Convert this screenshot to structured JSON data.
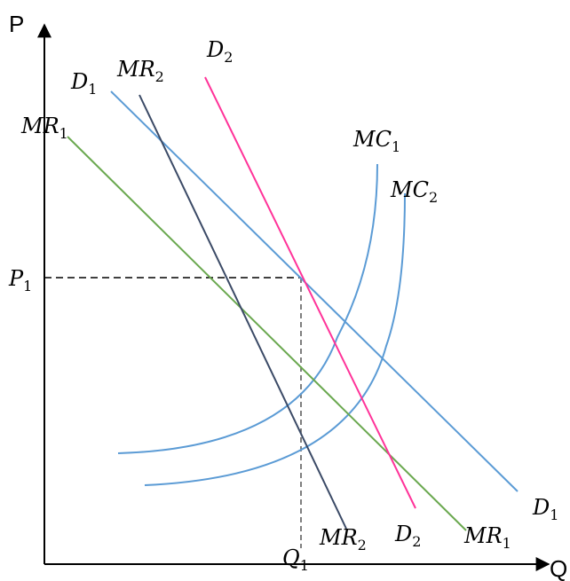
{
  "axes": {
    "y_label": "P",
    "x_label": "Q"
  },
  "curves": {
    "D1": {
      "base": "D",
      "sub": "1",
      "color": "#5b9bd5"
    },
    "D2": {
      "base": "D",
      "sub": "2",
      "color": "#ff3399"
    },
    "MR1": {
      "base": "MR",
      "sub": "1",
      "color": "#6aa84f"
    },
    "MR2": {
      "base": "MR",
      "sub": "2",
      "color": "#3b4a66"
    },
    "MC1": {
      "base": "MC",
      "sub": "1",
      "color": "#5b9bd5"
    },
    "MC2": {
      "base": "MC",
      "sub": "2",
      "color": "#5b9bd5"
    }
  },
  "markers": {
    "P1": {
      "base": "P",
      "sub": "1"
    },
    "Q1": {
      "base": "Q",
      "sub": "1"
    }
  }
}
